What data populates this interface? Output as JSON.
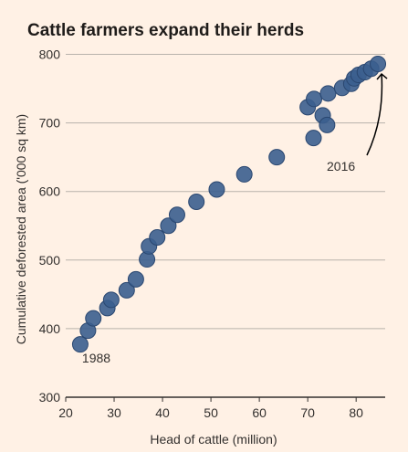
{
  "colors": {
    "background": "#fff1e5",
    "marker_fill": "#3b5e8e",
    "marker_stroke": "#2a4770",
    "gridline": "#b8b2ab",
    "axis": "#33302e",
    "text": "#33302e",
    "title": "#1f1c1a"
  },
  "chart_data": {
    "type": "scatter",
    "title": "Cattle farmers expand their herds",
    "xlabel": "Head of cattle (million)",
    "ylabel": "Cumulative deforested area ('000 sq km)",
    "xlim": [
      20,
      86
    ],
    "ylim": [
      300,
      810
    ],
    "x_ticks": [
      20,
      30,
      40,
      50,
      60,
      70,
      80
    ],
    "y_ticks": [
      300,
      400,
      500,
      600,
      700,
      800
    ],
    "grid": "horizontal",
    "points": [
      {
        "x": 23.0,
        "y": 377
      },
      {
        "x": 24.6,
        "y": 397
      },
      {
        "x": 25.7,
        "y": 415
      },
      {
        "x": 28.6,
        "y": 430
      },
      {
        "x": 29.4,
        "y": 442
      },
      {
        "x": 32.6,
        "y": 456
      },
      {
        "x": 34.5,
        "y": 472
      },
      {
        "x": 36.8,
        "y": 501
      },
      {
        "x": 37.2,
        "y": 520
      },
      {
        "x": 38.9,
        "y": 533
      },
      {
        "x": 41.2,
        "y": 550
      },
      {
        "x": 43.0,
        "y": 566
      },
      {
        "x": 47.0,
        "y": 585
      },
      {
        "x": 51.2,
        "y": 603
      },
      {
        "x": 56.9,
        "y": 625
      },
      {
        "x": 63.6,
        "y": 650
      },
      {
        "x": 70.0,
        "y": 723
      },
      {
        "x": 71.3,
        "y": 735
      },
      {
        "x": 71.2,
        "y": 678
      },
      {
        "x": 73.1,
        "y": 711
      },
      {
        "x": 74.0,
        "y": 697
      },
      {
        "x": 74.2,
        "y": 743
      },
      {
        "x": 77.1,
        "y": 751
      },
      {
        "x": 79.0,
        "y": 757
      },
      {
        "x": 79.6,
        "y": 765
      },
      {
        "x": 80.5,
        "y": 770
      },
      {
        "x": 81.8,
        "y": 774
      },
      {
        "x": 83.1,
        "y": 779
      },
      {
        "x": 84.5,
        "y": 786
      }
    ],
    "annotations": [
      {
        "text": "1988",
        "x": 23.0,
        "y": 377
      },
      {
        "text": "2016",
        "x": 84.5,
        "y": 786
      }
    ]
  }
}
